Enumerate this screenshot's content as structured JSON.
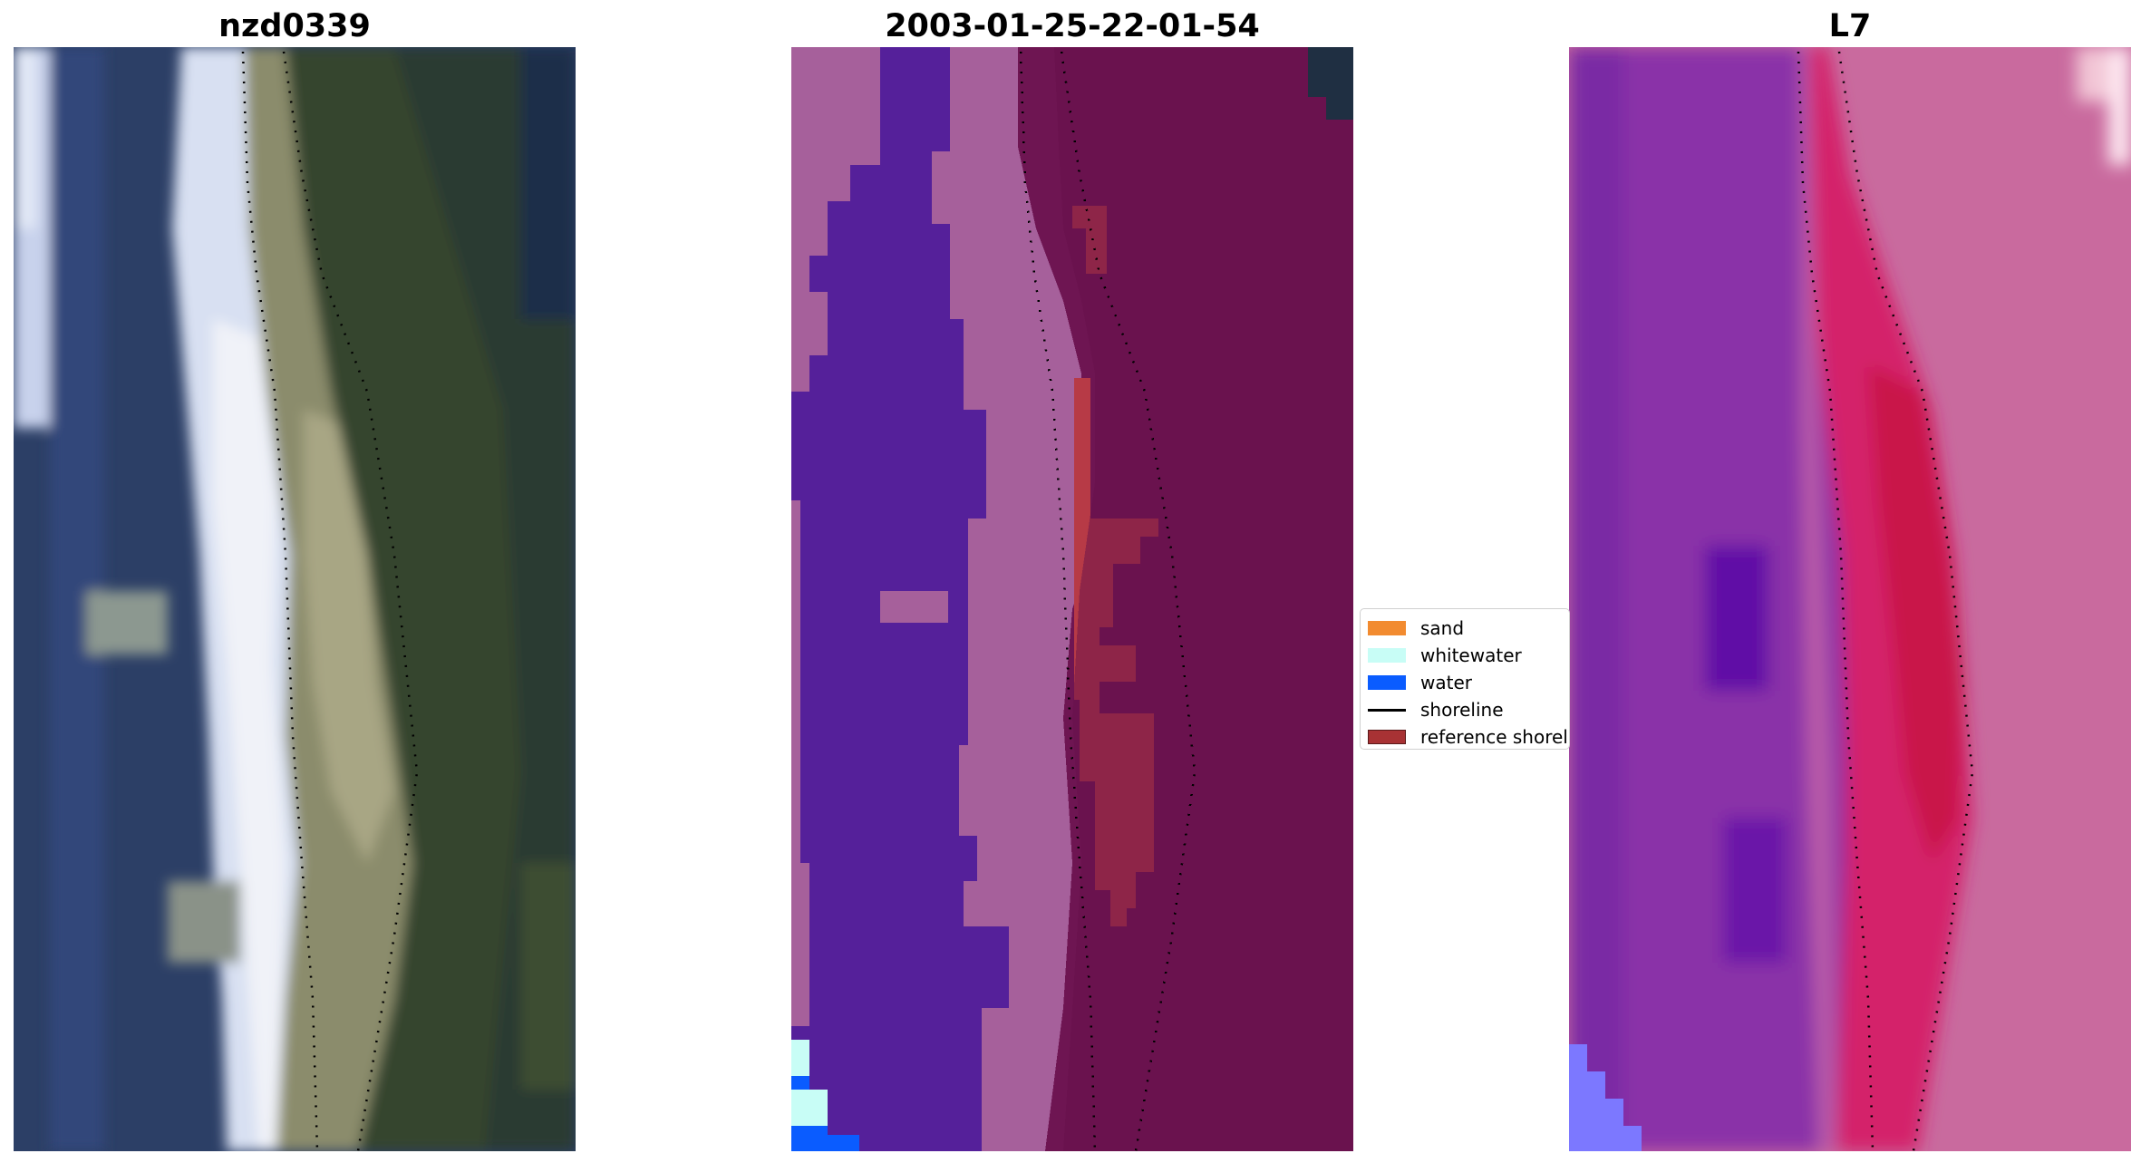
{
  "panels": [
    {
      "title": "nzd0339"
    },
    {
      "title": "2003-01-25-22-01-54"
    },
    {
      "title": "L7"
    }
  ],
  "legend": {
    "items": [
      {
        "label": "sand",
        "color": "#f28b30",
        "kind": "swatch"
      },
      {
        "label": "whitewater",
        "color": "#c8fdf6",
        "kind": "swatch"
      },
      {
        "label": "water",
        "color": "#0a5cff",
        "kind": "swatch"
      },
      {
        "label": "shoreline",
        "color": "#000000",
        "kind": "line"
      },
      {
        "label": "reference shoreline",
        "color": "#a83234",
        "kind": "swatch"
      }
    ]
  },
  "colors": {
    "left_water": "#2c3f66",
    "left_surf": "#d6e0f2",
    "left_sand": "#8e8e6e",
    "left_vegetation": "#34452f",
    "mid_water_class": "#55209a",
    "mid_whitewater_class": "#a6609b",
    "mid_land": "#6e1552",
    "mid_sand_class": "#b73a46",
    "right_water": "#8a30a8",
    "right_wet_sand": "#d4216a",
    "right_land": "#c96a9e"
  }
}
